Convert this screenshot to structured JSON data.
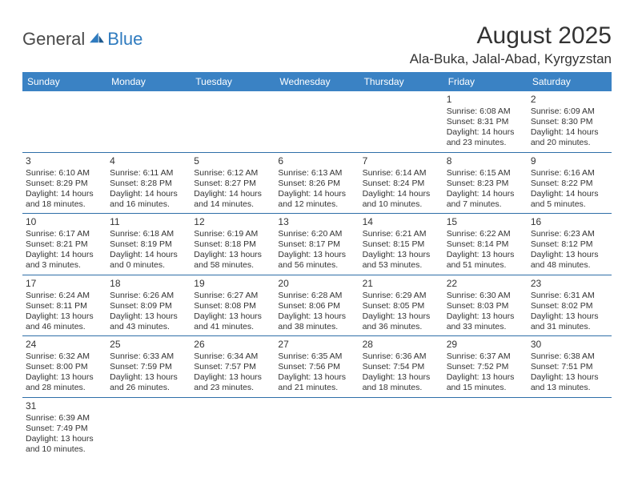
{
  "logo": {
    "text1": "General",
    "text2": "Blue"
  },
  "title": "August 2025",
  "location": "Ala-Buka, Jalal-Abad, Kyrgyzstan",
  "colors": {
    "header_bg": "#3a82c4",
    "header_text": "#ffffff",
    "border": "#2f6fa8",
    "text": "#333333",
    "logo_blue": "#2f7bbf"
  },
  "dayHeaders": [
    "Sunday",
    "Monday",
    "Tuesday",
    "Wednesday",
    "Thursday",
    "Friday",
    "Saturday"
  ],
  "weeks": [
    [
      null,
      null,
      null,
      null,
      null,
      {
        "n": "1",
        "sr": "Sunrise: 6:08 AM",
        "ss": "Sunset: 8:31 PM",
        "dl": "Daylight: 14 hours and 23 minutes."
      },
      {
        "n": "2",
        "sr": "Sunrise: 6:09 AM",
        "ss": "Sunset: 8:30 PM",
        "dl": "Daylight: 14 hours and 20 minutes."
      }
    ],
    [
      {
        "n": "3",
        "sr": "Sunrise: 6:10 AM",
        "ss": "Sunset: 8:29 PM",
        "dl": "Daylight: 14 hours and 18 minutes."
      },
      {
        "n": "4",
        "sr": "Sunrise: 6:11 AM",
        "ss": "Sunset: 8:28 PM",
        "dl": "Daylight: 14 hours and 16 minutes."
      },
      {
        "n": "5",
        "sr": "Sunrise: 6:12 AM",
        "ss": "Sunset: 8:27 PM",
        "dl": "Daylight: 14 hours and 14 minutes."
      },
      {
        "n": "6",
        "sr": "Sunrise: 6:13 AM",
        "ss": "Sunset: 8:26 PM",
        "dl": "Daylight: 14 hours and 12 minutes."
      },
      {
        "n": "7",
        "sr": "Sunrise: 6:14 AM",
        "ss": "Sunset: 8:24 PM",
        "dl": "Daylight: 14 hours and 10 minutes."
      },
      {
        "n": "8",
        "sr": "Sunrise: 6:15 AM",
        "ss": "Sunset: 8:23 PM",
        "dl": "Daylight: 14 hours and 7 minutes."
      },
      {
        "n": "9",
        "sr": "Sunrise: 6:16 AM",
        "ss": "Sunset: 8:22 PM",
        "dl": "Daylight: 14 hours and 5 minutes."
      }
    ],
    [
      {
        "n": "10",
        "sr": "Sunrise: 6:17 AM",
        "ss": "Sunset: 8:21 PM",
        "dl": "Daylight: 14 hours and 3 minutes."
      },
      {
        "n": "11",
        "sr": "Sunrise: 6:18 AM",
        "ss": "Sunset: 8:19 PM",
        "dl": "Daylight: 14 hours and 0 minutes."
      },
      {
        "n": "12",
        "sr": "Sunrise: 6:19 AM",
        "ss": "Sunset: 8:18 PM",
        "dl": "Daylight: 13 hours and 58 minutes."
      },
      {
        "n": "13",
        "sr": "Sunrise: 6:20 AM",
        "ss": "Sunset: 8:17 PM",
        "dl": "Daylight: 13 hours and 56 minutes."
      },
      {
        "n": "14",
        "sr": "Sunrise: 6:21 AM",
        "ss": "Sunset: 8:15 PM",
        "dl": "Daylight: 13 hours and 53 minutes."
      },
      {
        "n": "15",
        "sr": "Sunrise: 6:22 AM",
        "ss": "Sunset: 8:14 PM",
        "dl": "Daylight: 13 hours and 51 minutes."
      },
      {
        "n": "16",
        "sr": "Sunrise: 6:23 AM",
        "ss": "Sunset: 8:12 PM",
        "dl": "Daylight: 13 hours and 48 minutes."
      }
    ],
    [
      {
        "n": "17",
        "sr": "Sunrise: 6:24 AM",
        "ss": "Sunset: 8:11 PM",
        "dl": "Daylight: 13 hours and 46 minutes."
      },
      {
        "n": "18",
        "sr": "Sunrise: 6:26 AM",
        "ss": "Sunset: 8:09 PM",
        "dl": "Daylight: 13 hours and 43 minutes."
      },
      {
        "n": "19",
        "sr": "Sunrise: 6:27 AM",
        "ss": "Sunset: 8:08 PM",
        "dl": "Daylight: 13 hours and 41 minutes."
      },
      {
        "n": "20",
        "sr": "Sunrise: 6:28 AM",
        "ss": "Sunset: 8:06 PM",
        "dl": "Daylight: 13 hours and 38 minutes."
      },
      {
        "n": "21",
        "sr": "Sunrise: 6:29 AM",
        "ss": "Sunset: 8:05 PM",
        "dl": "Daylight: 13 hours and 36 minutes."
      },
      {
        "n": "22",
        "sr": "Sunrise: 6:30 AM",
        "ss": "Sunset: 8:03 PM",
        "dl": "Daylight: 13 hours and 33 minutes."
      },
      {
        "n": "23",
        "sr": "Sunrise: 6:31 AM",
        "ss": "Sunset: 8:02 PM",
        "dl": "Daylight: 13 hours and 31 minutes."
      }
    ],
    [
      {
        "n": "24",
        "sr": "Sunrise: 6:32 AM",
        "ss": "Sunset: 8:00 PM",
        "dl": "Daylight: 13 hours and 28 minutes."
      },
      {
        "n": "25",
        "sr": "Sunrise: 6:33 AM",
        "ss": "Sunset: 7:59 PM",
        "dl": "Daylight: 13 hours and 26 minutes."
      },
      {
        "n": "26",
        "sr": "Sunrise: 6:34 AM",
        "ss": "Sunset: 7:57 PM",
        "dl": "Daylight: 13 hours and 23 minutes."
      },
      {
        "n": "27",
        "sr": "Sunrise: 6:35 AM",
        "ss": "Sunset: 7:56 PM",
        "dl": "Daylight: 13 hours and 21 minutes."
      },
      {
        "n": "28",
        "sr": "Sunrise: 6:36 AM",
        "ss": "Sunset: 7:54 PM",
        "dl": "Daylight: 13 hours and 18 minutes."
      },
      {
        "n": "29",
        "sr": "Sunrise: 6:37 AM",
        "ss": "Sunset: 7:52 PM",
        "dl": "Daylight: 13 hours and 15 minutes."
      },
      {
        "n": "30",
        "sr": "Sunrise: 6:38 AM",
        "ss": "Sunset: 7:51 PM",
        "dl": "Daylight: 13 hours and 13 minutes."
      }
    ],
    [
      {
        "n": "31",
        "sr": "Sunrise: 6:39 AM",
        "ss": "Sunset: 7:49 PM",
        "dl": "Daylight: 13 hours and 10 minutes."
      },
      null,
      null,
      null,
      null,
      null,
      null
    ]
  ]
}
